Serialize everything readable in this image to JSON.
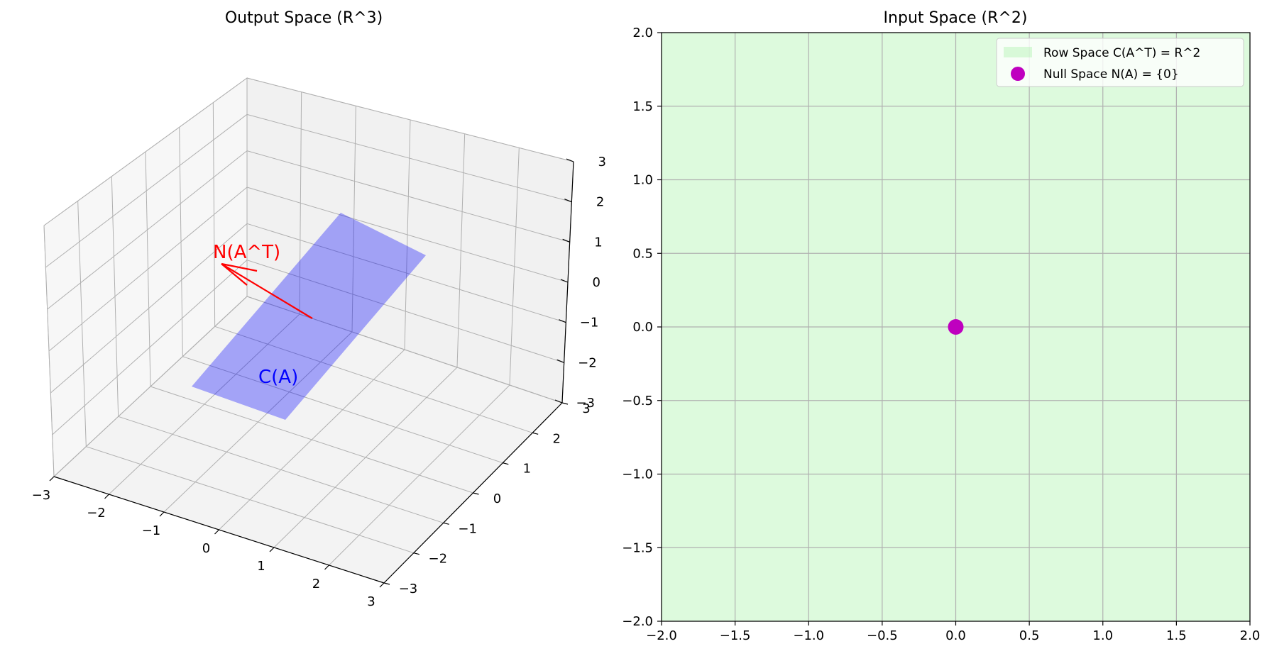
{
  "chart_data": [
    {
      "type": "3d-surface",
      "title": "Output Space (R^3)",
      "xlim": [
        -3,
        3
      ],
      "ylim": [
        -3,
        3
      ],
      "zlim": [
        -3,
        3
      ],
      "x_ticks": [
        "−3",
        "−2",
        "−1",
        "0",
        "1",
        "2",
        "3"
      ],
      "y_ticks": [
        "−3",
        "−2",
        "−1",
        "0",
        "1",
        "2",
        "3"
      ],
      "z_ticks": [
        "−3",
        "−2",
        "−1",
        "0",
        "1",
        "2",
        "3"
      ],
      "grid": true,
      "plane": {
        "label": "C(A)",
        "color": "#0000ff",
        "alpha": 0.33,
        "corners": [
          [
            0,
            -2,
            -2
          ],
          [
            2,
            -2,
            2
          ],
          [
            2,
            2,
            2
          ],
          [
            0,
            2,
            -2
          ]
        ]
      },
      "vector": {
        "label": "N(A^T)",
        "color": "#ff0000",
        "from": [
          1,
          0,
          0
        ],
        "to": [
          -1,
          0,
          0
        ]
      }
    },
    {
      "type": "scatter",
      "title": "Input Space (R^2)",
      "xlim": [
        -2,
        2
      ],
      "ylim": [
        -2,
        2
      ],
      "x_ticks": [
        -2.0,
        -1.5,
        -1.0,
        -0.5,
        0.0,
        0.5,
        1.0,
        1.5,
        2.0
      ],
      "y_ticks": [
        -2.0,
        -1.5,
        -1.0,
        -0.5,
        0.0,
        0.5,
        1.0,
        1.5,
        2.0
      ],
      "x_tick_labels": [
        "−2.0",
        "−1.5",
        "−1.0",
        "−0.5",
        "0.0",
        "0.5",
        "1.0",
        "1.5",
        "2.0"
      ],
      "y_tick_labels": [
        "−2.0",
        "−1.5",
        "−1.0",
        "−0.5",
        "0.0",
        "0.5",
        "1.0",
        "1.5",
        "2.0"
      ],
      "grid": true,
      "fill": {
        "label": "Row Space C(A^T) = R^2",
        "color": "#90ee90",
        "alpha": 0.3
      },
      "points": [
        {
          "x": 0,
          "y": 0,
          "label": "Null Space N(A) = {0}",
          "color": "#bf00bf"
        }
      ],
      "legend": {
        "placement": "top-right",
        "entries": [
          "Row Space C(A^T) = R^2",
          "Null Space N(A) = {0}"
        ]
      }
    }
  ]
}
